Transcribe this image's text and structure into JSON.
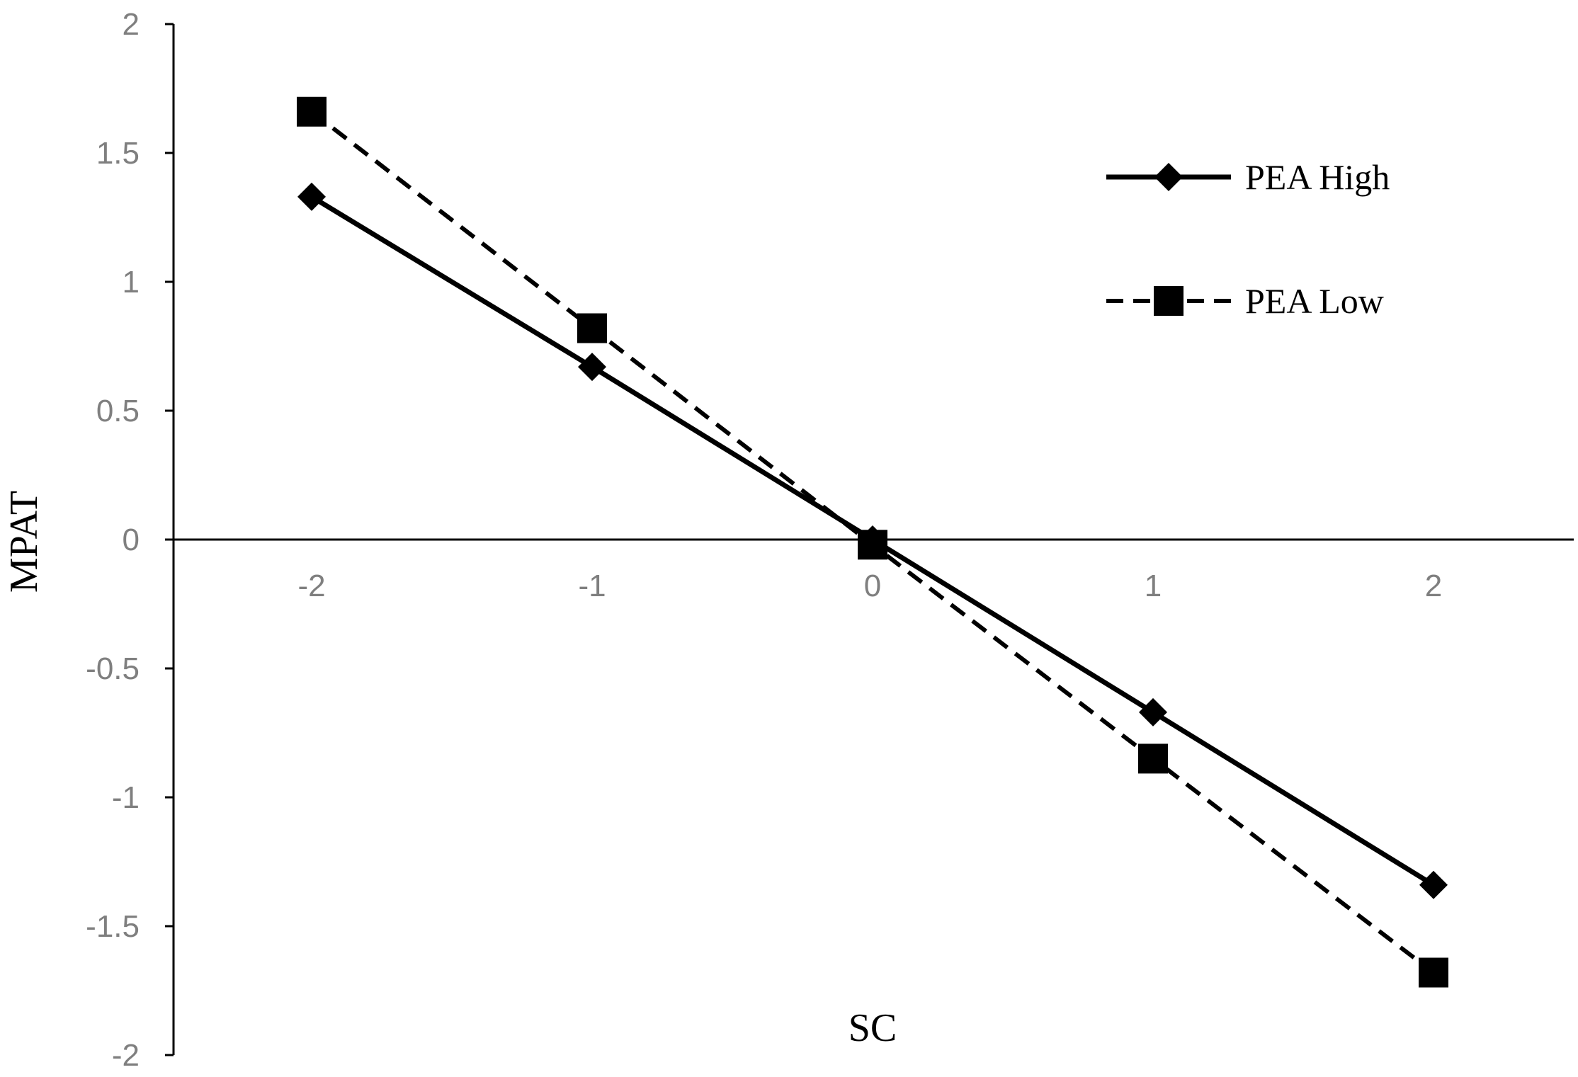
{
  "chart_data": {
    "type": "line",
    "x": [
      -2,
      -1,
      0,
      1,
      2
    ],
    "series": [
      {
        "name": "PEA High",
        "values": [
          1.33,
          0.67,
          0.0,
          -0.67,
          -1.34
        ],
        "marker": "diamond",
        "line": "solid"
      },
      {
        "name": "PEA Low",
        "values": [
          1.66,
          0.82,
          -0.02,
          -0.85,
          -1.68
        ],
        "marker": "square",
        "line": "dashed"
      }
    ],
    "xlabel": "SC",
    "ylabel": "MPAT",
    "xlim": [
      -2.5,
      2.5
    ],
    "ylim": [
      -2,
      2
    ],
    "yticks": [
      2,
      1.5,
      1,
      0.5,
      0,
      -0.5,
      -1,
      -1.5,
      -2
    ],
    "ytick_labels": [
      "2",
      "1.5",
      "1",
      "0.5",
      "0",
      "-0.5",
      "-1",
      "-1.5",
      "-2"
    ],
    "xticks": [
      -2,
      -1,
      0,
      1,
      2
    ],
    "xtick_labels": [
      "-2",
      "-1",
      "0",
      "1",
      "2"
    ],
    "grid": false,
    "legend": "top-right",
    "line_color": "#000000",
    "tick_label_color": "#7f7f7f"
  }
}
